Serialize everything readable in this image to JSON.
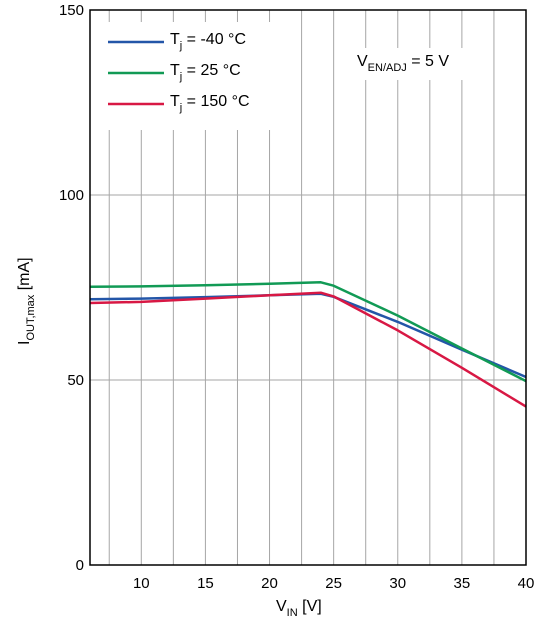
{
  "chart_data": {
    "type": "line",
    "xlabel": {
      "main": "V",
      "sub": "IN",
      "unit": " [V]"
    },
    "ylabel": {
      "main": "I",
      "sub": "OUT,max",
      "unit": " [mA]"
    },
    "xlim": [
      6,
      40
    ],
    "ylim": [
      0,
      150
    ],
    "xticks": [
      10,
      15,
      20,
      25,
      30,
      35,
      40
    ],
    "yticks": [
      0,
      50,
      100,
      150
    ],
    "x_gridlines": [
      7.5,
      10,
      12.5,
      15,
      17.5,
      20,
      22.5,
      25,
      27.5,
      30,
      32.5,
      35,
      37.5,
      40
    ],
    "y_gridlines": [
      50,
      100
    ],
    "grid": true,
    "legend_position": "top-left",
    "annotation": {
      "main": "V",
      "sub": "EN/ADJ",
      "suffix": " = 5 V"
    },
    "series": [
      {
        "name": "T_j = -40 °C",
        "label": {
          "main": "T",
          "sub": "j",
          "suffix": " = -40 °C"
        },
        "color": "#2356a8",
        "x": [
          6,
          10,
          15,
          20,
          24,
          25,
          30,
          35,
          40
        ],
        "y": [
          71.8,
          72.0,
          72.4,
          72.9,
          73.3,
          72.5,
          65.7,
          58.2,
          50.8
        ]
      },
      {
        "name": "T_j = 25 °C",
        "label": {
          "main": "T",
          "sub": "j",
          "suffix": " = 25 °C"
        },
        "color": "#119a55",
        "x": [
          6,
          10,
          15,
          20,
          24,
          25,
          30,
          35,
          40
        ],
        "y": [
          75.2,
          75.3,
          75.6,
          76.0,
          76.4,
          75.5,
          67.4,
          58.5,
          49.7
        ]
      },
      {
        "name": "T_j = 150 °C",
        "label": {
          "main": "T",
          "sub": "j",
          "suffix": " = 150 °C"
        },
        "color": "#d81844",
        "x": [
          6,
          10,
          15,
          20,
          24,
          25,
          30,
          35,
          40
        ],
        "y": [
          70.8,
          71.1,
          72.0,
          72.9,
          73.6,
          72.6,
          63.4,
          53.3,
          42.8
        ]
      }
    ]
  }
}
